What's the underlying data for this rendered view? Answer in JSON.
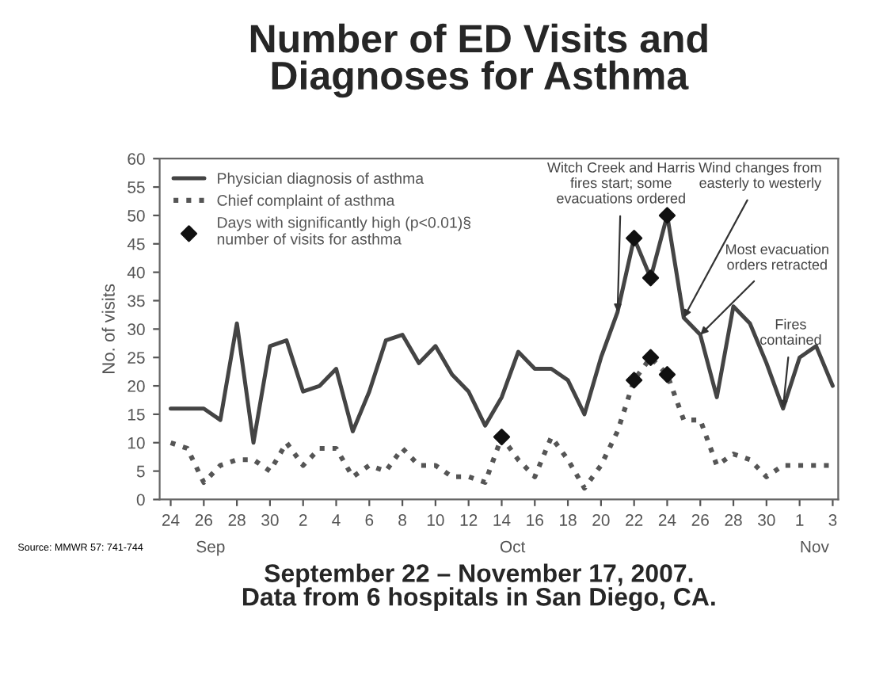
{
  "chart_data": {
    "type": "line",
    "title": "Number of ED Visits and\nDiagnoses for Asthma",
    "subtitle": "September 22 – November 17, 2007.\nData from 6 hospitals in San Diego, CA.",
    "ylabel": "No. of visits",
    "x": [
      "2007-09-24",
      "2007-09-25",
      "2007-09-26",
      "2007-09-27",
      "2007-09-28",
      "2007-09-29",
      "2007-09-30",
      "2007-10-01",
      "2007-10-02",
      "2007-10-03",
      "2007-10-04",
      "2007-10-05",
      "2007-10-06",
      "2007-10-07",
      "2007-10-08",
      "2007-10-09",
      "2007-10-10",
      "2007-10-11",
      "2007-10-12",
      "2007-10-13",
      "2007-10-14",
      "2007-10-15",
      "2007-10-16",
      "2007-10-17",
      "2007-10-18",
      "2007-10-19",
      "2007-10-20",
      "2007-10-21",
      "2007-10-22",
      "2007-10-23",
      "2007-10-24",
      "2007-10-25",
      "2007-10-26",
      "2007-10-27",
      "2007-10-28",
      "2007-10-29",
      "2007-10-30",
      "2007-10-31",
      "2007-11-01",
      "2007-11-02",
      "2007-11-03"
    ],
    "series": [
      {
        "name": "Physician diagnosis of asthma",
        "color": "#444444",
        "line_style": "solid",
        "values": [
          16,
          16,
          16,
          14,
          31,
          10,
          27,
          28,
          19,
          20,
          23,
          12,
          19,
          28,
          29,
          24,
          27,
          22,
          19,
          13,
          18,
          26,
          23,
          23,
          21,
          15,
          25,
          33,
          46,
          39,
          50,
          32,
          29,
          18,
          34,
          31,
          24,
          16,
          25,
          27,
          20
        ]
      },
      {
        "name": "Chief complaint of asthma",
        "color": "#555555",
        "line_style": "dotted",
        "values": [
          10,
          9,
          3,
          6,
          7,
          7,
          5,
          10,
          6,
          9,
          9,
          4,
          6,
          5,
          9,
          6,
          6,
          4,
          4,
          3,
          11,
          7,
          4,
          11,
          7,
          2,
          6,
          12,
          21,
          25,
          22,
          14,
          14,
          6,
          8,
          7,
          4,
          6,
          6,
          6,
          6
        ]
      },
      {
        "name": "Days with significantly high (p<0.01)§\nnumber of visits for asthma",
        "type": "scatter",
        "marker": "diamond",
        "color": "#111111",
        "x": [
          "2007-10-14",
          "2007-10-22",
          "2007-10-23",
          "2007-10-24",
          "2007-10-22",
          "2007-10-23",
          "2007-10-24"
        ],
        "values": [
          11,
          21,
          25,
          22,
          46,
          39,
          50
        ]
      }
    ],
    "xlim": [
      "2007-09-23T08:00",
      "2007-11-03T08:00"
    ],
    "xticks": [
      {
        "value": "2007-09-24",
        "label": "24"
      },
      {
        "value": "2007-09-26",
        "label": "26"
      },
      {
        "value": "2007-09-28",
        "label": "28"
      },
      {
        "value": "2007-09-30",
        "label": "30"
      },
      {
        "value": "2007-10-02",
        "label": "2"
      },
      {
        "value": "2007-10-04",
        "label": "4"
      },
      {
        "value": "2007-10-06",
        "label": "6"
      },
      {
        "value": "2007-10-08",
        "label": "8"
      },
      {
        "value": "2007-10-10",
        "label": "10"
      },
      {
        "value": "2007-10-12",
        "label": "12"
      },
      {
        "value": "2007-10-14",
        "label": "14"
      },
      {
        "value": "2007-10-16",
        "label": "16"
      },
      {
        "value": "2007-10-18",
        "label": "18"
      },
      {
        "value": "2007-10-20",
        "label": "20"
      },
      {
        "value": "2007-10-22",
        "label": "22"
      },
      {
        "value": "2007-10-24",
        "label": "24"
      },
      {
        "value": "2007-10-26",
        "label": "26"
      },
      {
        "value": "2007-10-28",
        "label": "28"
      },
      {
        "value": "2007-10-30",
        "label": "30"
      },
      {
        "value": "2007-11-01",
        "label": "1"
      },
      {
        "value": "2007-11-03",
        "label": "3"
      }
    ],
    "ylim": [
      0,
      60
    ],
    "yticks": [
      0,
      5,
      10,
      15,
      20,
      25,
      30,
      35,
      40,
      45,
      50,
      55,
      60
    ],
    "grid": false,
    "legend": "top left",
    "annotations": [
      {
        "text": "Witch Creek and Harris\nfires start; some\nevacuations ordered",
        "x": "2007-10-21",
        "y": 33
      },
      {
        "text": "Wind changes from\neasterly to westerly",
        "x": "2007-10-25",
        "y": 32
      },
      {
        "text": "Most evacuation\norders retracted",
        "x": "2007-10-26",
        "y": 29
      },
      {
        "text": "Fires\ncontained",
        "x": "2007-10-31",
        "y": 16
      },
      "Sep",
      "Oct",
      "Nov",
      "Source: MMWR 57: 741-744"
    ]
  }
}
